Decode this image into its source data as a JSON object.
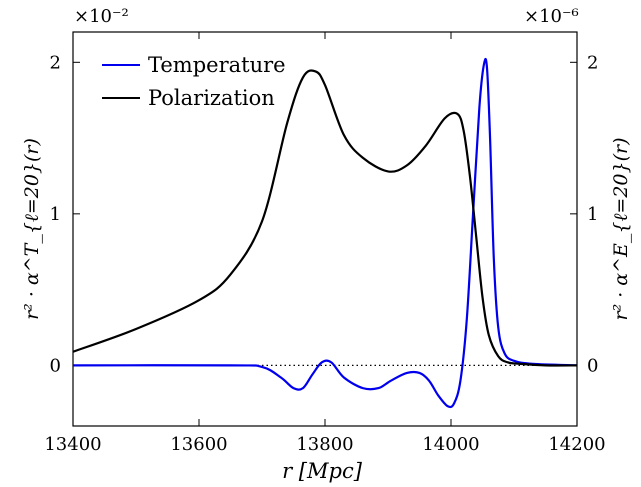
{
  "chart_data": {
    "type": "line",
    "xlabel": "r [Mpc]",
    "ylabel_left": "r² · α^T_{ℓ=20}(r)",
    "ylabel_right": "r² · α^E_{ℓ=20}(r)",
    "left_multiplier": "×10⁻²",
    "right_multiplier": "×10⁻⁶",
    "xlim": [
      13400,
      14200
    ],
    "ylim": [
      -0.4,
      2.2
    ],
    "x_ticks": [
      13400,
      13600,
      13800,
      14000,
      14200
    ],
    "y_ticks": [
      0,
      1,
      2
    ],
    "x_tick_labels": [
      "13400",
      "13600",
      "13800",
      "14000",
      "14200"
    ],
    "y_tick_labels_left": [
      "0",
      "1",
      "2"
    ],
    "y_tick_labels_right": [
      "0",
      "1",
      "2"
    ],
    "zero_line": "dotted",
    "grid": false,
    "legend_position": "top-left",
    "series": [
      {
        "name": "Temperature",
        "color": "#0000ee",
        "axis": "left",
        "x": [
          13400,
          13650,
          13700,
          13730,
          13750,
          13765,
          13780,
          13795,
          13810,
          13830,
          13860,
          13885,
          13905,
          13930,
          13950,
          13965,
          13980,
          13995,
          14005,
          14015,
          14025,
          14035,
          14045,
          14052,
          14057,
          14062,
          14068,
          14075,
          14085,
          14100,
          14130,
          14200
        ],
        "y": [
          0,
          0,
          -0.01,
          -0.08,
          -0.15,
          -0.15,
          -0.06,
          0.02,
          0.02,
          -0.08,
          -0.15,
          -0.15,
          -0.1,
          -0.05,
          -0.05,
          -0.1,
          -0.2,
          -0.27,
          -0.25,
          -0.1,
          0.3,
          1.0,
          1.7,
          1.98,
          1.97,
          1.5,
          0.7,
          0.25,
          0.08,
          0.03,
          0.01,
          0
        ]
      },
      {
        "name": "Polarization",
        "color": "#000000",
        "axis": "right",
        "x": [
          13400,
          13500,
          13600,
          13650,
          13700,
          13740,
          13765,
          13785,
          13800,
          13830,
          13860,
          13900,
          13930,
          13960,
          13990,
          14010,
          14020,
          14030,
          14040,
          14050,
          14060,
          14075,
          14090,
          14110,
          14150,
          14200
        ],
        "y": [
          0.09,
          0.24,
          0.43,
          0.6,
          0.95,
          1.6,
          1.9,
          1.94,
          1.85,
          1.52,
          1.37,
          1.28,
          1.32,
          1.45,
          1.63,
          1.66,
          1.55,
          1.25,
          0.85,
          0.45,
          0.2,
          0.06,
          0.02,
          0.01,
          0,
          0
        ]
      }
    ]
  }
}
